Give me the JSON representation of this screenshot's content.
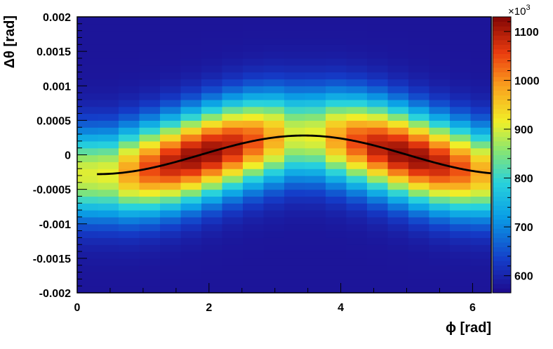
{
  "chart_data": {
    "type": "heatmap",
    "xlabel": "ϕ [rad]",
    "ylabel": "Δθ [rad]",
    "x_range": [
      0,
      6.2832
    ],
    "y_range": [
      -0.002,
      0.002
    ],
    "n_x_bins": 20,
    "n_y_bins": 40,
    "x_ticks": [
      {
        "value": 0,
        "label": "0"
      },
      {
        "value": 2,
        "label": "2"
      },
      {
        "value": 4,
        "label": "4"
      },
      {
        "value": 6,
        "label": "6"
      }
    ],
    "y_ticks": [
      {
        "value": 0.002,
        "label": "0.002"
      },
      {
        "value": 0.0015,
        "label": "0.0015"
      },
      {
        "value": 0.001,
        "label": "0.001"
      },
      {
        "value": 0.0005,
        "label": "0.0005"
      },
      {
        "value": 0,
        "label": "0"
      },
      {
        "value": -0.0005,
        "label": "-0.0005"
      },
      {
        "value": -0.001,
        "label": "-0.001"
      },
      {
        "value": -0.0015,
        "label": "-0.0015"
      },
      {
        "value": -0.002,
        "label": "-0.002"
      }
    ],
    "color_scale": {
      "range": [
        565,
        1130
      ],
      "multiplier_label": "×10",
      "multiplier_exponent": "3",
      "ticks": [
        {
          "value": 600,
          "label": "600"
        },
        {
          "value": 700,
          "label": "700"
        },
        {
          "value": 800,
          "label": "800"
        },
        {
          "value": 900,
          "label": "900"
        },
        {
          "value": 1000,
          "label": "1000"
        },
        {
          "value": 1100,
          "label": "1100"
        }
      ]
    },
    "density_model": {
      "center_amplitude": 0.00028,
      "center_phase": 0.3,
      "width": 0.00062,
      "base": 580,
      "peak_base": 870,
      "peak_modulation": 250
    },
    "fit_curve": {
      "amplitude": 0.00028,
      "phase": 0.3,
      "x_start": 0.3,
      "x_end": 6.2832,
      "color": "#000000"
    }
  }
}
